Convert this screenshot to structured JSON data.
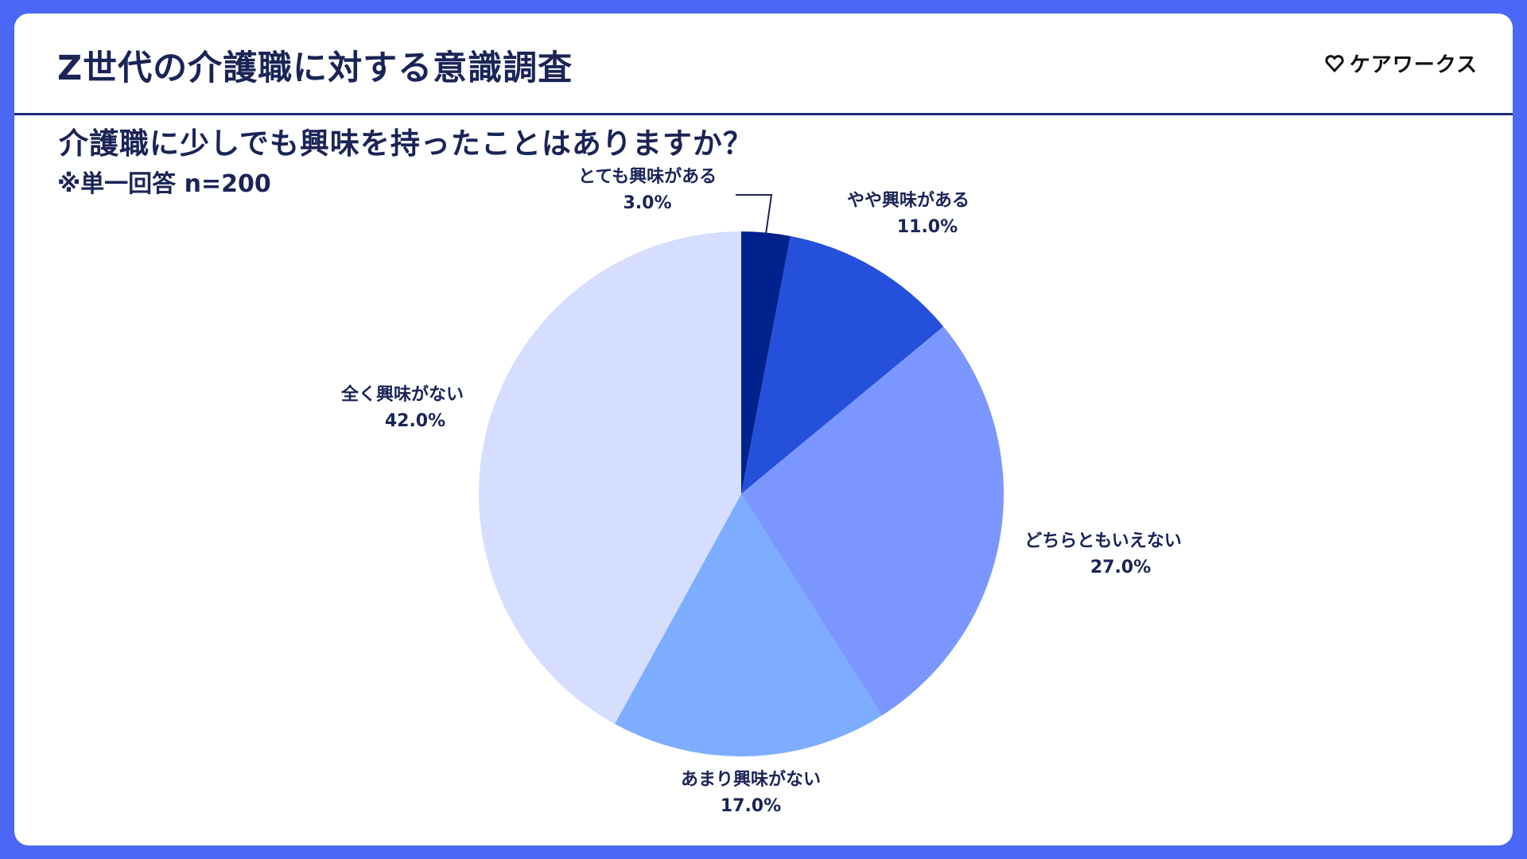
{
  "header": {
    "title": "Z世代の介護職に対する意識調査",
    "logo_text": "ケアワークス"
  },
  "question": "介護職に少しでも興味を持ったことはありますか？",
  "note": "※単一回答 n=200",
  "colors": {
    "background": "#4a67f5",
    "card": "#ffffff",
    "header_rule": "#1c2a78",
    "text": "#1a2456"
  },
  "chart_data": {
    "type": "pie",
    "title": "介護職に少しでも興味を持ったことはありますか？",
    "start_angle_deg": 0,
    "direction": "clockwise",
    "slices": [
      {
        "label": "とても興味がある",
        "value": 3.0,
        "display": "3.0%",
        "color": "#00228c"
      },
      {
        "label": "やや興味がある",
        "value": 11.0,
        "display": "11.0%",
        "color": "#2450dc"
      },
      {
        "label": "どちらともいえない",
        "value": 27.0,
        "display": "27.0%",
        "color": "#7b97ff"
      },
      {
        "label": "あまり興味がない",
        "value": 17.0,
        "display": "17.0%",
        "color": "#7eadff"
      },
      {
        "label": "全く興味がない",
        "value": 42.0,
        "display": "42.0%",
        "color": "#d5deff"
      }
    ]
  }
}
